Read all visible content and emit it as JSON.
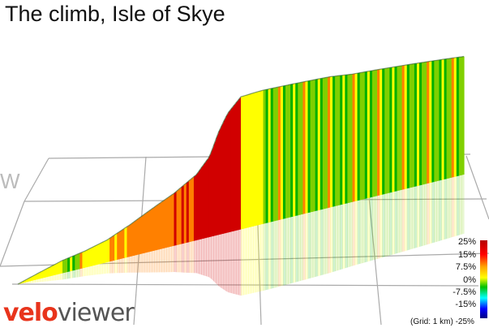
{
  "title": "The climb, Isle of Skye",
  "logo": {
    "part1": "velo",
    "part2": "viewer"
  },
  "compass": "W",
  "legend": {
    "labels": [
      "25%",
      "15%",
      "7.5%",
      "0%",
      "-7.5%",
      "-15%",
      "-25%"
    ],
    "grid_note": "(Grid: 1 km)"
  },
  "colors": {
    "steep": "#d10000",
    "hard": "#ff8000",
    "moderate": "#ffff00",
    "gentle": "#80d000",
    "flat": "#00b000",
    "grid": "#aaaaaa"
  },
  "chart_data": {
    "type": "area",
    "title": "The climb, Isle of Skye",
    "xlabel": "",
    "ylabel": "",
    "grid": true,
    "legend_placement": "bottom-right",
    "colorscale_gradient_percent": [
      25,
      15,
      7.5,
      0,
      -7.5,
      -15,
      -25
    ],
    "x_relative_distance": [
      0,
      0.05,
      0.1,
      0.15,
      0.2,
      0.25,
      0.3,
      0.35,
      0.4,
      0.43,
      0.45,
      0.47,
      0.49,
      0.5,
      0.55,
      0.6,
      0.65,
      0.7,
      0.75,
      0.8,
      0.85,
      0.9,
      0.95,
      1.0
    ],
    "y_relative_elevation": [
      0,
      0.03,
      0.06,
      0.08,
      0.11,
      0.16,
      0.22,
      0.28,
      0.36,
      0.45,
      0.58,
      0.68,
      0.74,
      0.77,
      0.8,
      0.82,
      0.84,
      0.86,
      0.87,
      0.89,
      0.91,
      0.93,
      0.95,
      0.97
    ]
  }
}
